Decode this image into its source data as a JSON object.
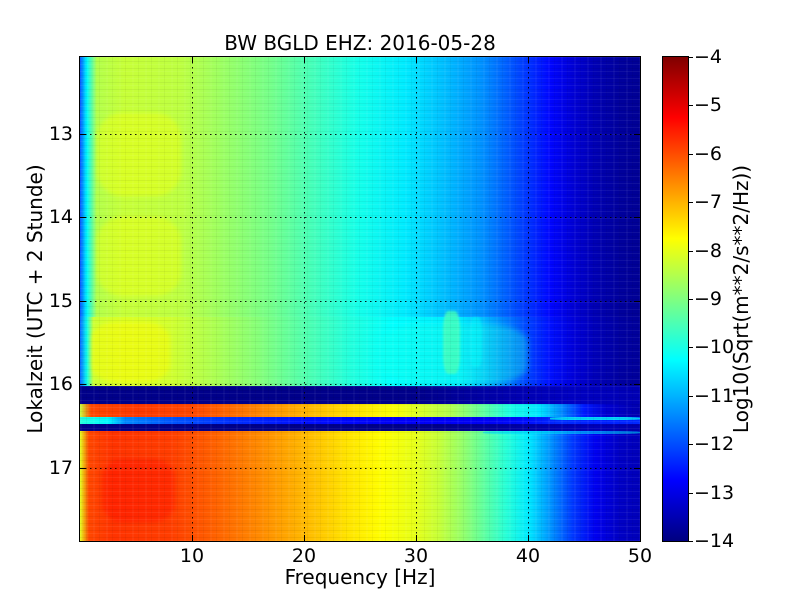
{
  "chart_data": {
    "type": "heatmap",
    "title": "BW BGLD EHZ: 2016-05-28",
    "xlabel": "Frequency [Hz]",
    "ylabel": "Lokalzeit (UTC + 2 Stunde)",
    "colorbar_label": "Log10(Sqrt(m**2/s**2/Hz))",
    "colormap": "jet",
    "grid": "dotted",
    "x_range": [
      0,
      50
    ],
    "x_ticks": [
      10,
      20,
      30,
      40,
      50
    ],
    "time_range": [
      12.08,
      17.88
    ],
    "time_ticks": [
      13,
      14,
      15,
      16,
      17
    ],
    "value_range": [
      -14,
      -4
    ],
    "colorbar_ticks": [
      -4,
      -5,
      -6,
      -7,
      -8,
      -9,
      -10,
      -11,
      -12,
      -13,
      -14
    ],
    "segments": [
      {
        "name": "quiet-period",
        "t_start": 12.08,
        "t_end": 15.2,
        "profile": [
          [
            0,
            -12.0
          ],
          [
            0.6,
            -10.3
          ],
          [
            1.5,
            -8.5
          ],
          [
            4,
            -8.3
          ],
          [
            9,
            -8.4
          ],
          [
            13,
            -8.75
          ],
          [
            17,
            -9.1
          ],
          [
            21,
            -9.6
          ],
          [
            25,
            -10.05
          ],
          [
            29,
            -10.45
          ],
          [
            33,
            -10.95
          ],
          [
            36,
            -11.35
          ],
          [
            38,
            -11.8
          ],
          [
            40,
            -12.25
          ],
          [
            42,
            -12.7
          ],
          [
            44,
            -13.15
          ],
          [
            46,
            -13.5
          ],
          [
            48,
            -13.7
          ],
          [
            50,
            -13.8
          ]
        ]
      },
      {
        "name": "pre-event-period",
        "t_start": 15.2,
        "t_end": 16.02,
        "profile": [
          [
            0,
            -11.8
          ],
          [
            0.6,
            -10.1
          ],
          [
            1.2,
            -8.25
          ],
          [
            4,
            -8.1
          ],
          [
            8,
            -8.2
          ],
          [
            12,
            -8.55
          ],
          [
            16,
            -8.95
          ],
          [
            20,
            -9.45
          ],
          [
            24,
            -9.9
          ],
          [
            28,
            -10.25
          ],
          [
            31,
            -10.35
          ],
          [
            34,
            -10.45
          ],
          [
            36,
            -10.9
          ],
          [
            38,
            -11.5
          ],
          [
            40,
            -12.1
          ],
          [
            42,
            -12.6
          ],
          [
            44,
            -13.1
          ],
          [
            46,
            -13.45
          ],
          [
            48,
            -13.65
          ],
          [
            50,
            -13.75
          ]
        ]
      },
      {
        "name": "data-gap-1",
        "t_start": 16.02,
        "t_end": 16.235,
        "profile": [
          [
            0,
            -13.9
          ],
          [
            30,
            -13.9
          ],
          [
            38,
            -13.55
          ],
          [
            44,
            -13.35
          ],
          [
            50,
            -13.5
          ]
        ]
      },
      {
        "name": "event-burst",
        "t_start": 16.235,
        "t_end": 16.395,
        "profile": [
          [
            0,
            -8.3
          ],
          [
            1,
            -5.95
          ],
          [
            5,
            -5.8
          ],
          [
            10,
            -5.95
          ],
          [
            15,
            -6.45
          ],
          [
            20,
            -7.0
          ],
          [
            25,
            -7.5
          ],
          [
            28,
            -7.8
          ],
          [
            33,
            -8.5
          ],
          [
            36,
            -9.3
          ],
          [
            38.5,
            -10.0
          ],
          [
            41,
            -10.5
          ],
          [
            43,
            -11.4
          ],
          [
            45,
            -12.5
          ],
          [
            47,
            -13.2
          ],
          [
            50,
            -13.55
          ]
        ]
      },
      {
        "name": "blue-stripe",
        "t_start": 16.395,
        "t_end": 16.48,
        "profile": [
          [
            0,
            -9.9
          ],
          [
            2.5,
            -10.3
          ],
          [
            4,
            -11.4
          ],
          [
            8,
            -11.9
          ],
          [
            13,
            -12.25
          ],
          [
            20,
            -12.6
          ],
          [
            28,
            -12.8
          ],
          [
            36,
            -12.85
          ],
          [
            40,
            -12.6
          ],
          [
            43,
            -12.3
          ],
          [
            46,
            -12.45
          ],
          [
            50,
            -12.35
          ]
        ]
      },
      {
        "name": "data-gap-2",
        "t_start": 16.48,
        "t_end": 16.565,
        "profile": [
          [
            0,
            -13.9
          ],
          [
            32,
            -13.9
          ],
          [
            40,
            -13.6
          ],
          [
            46,
            -13.45
          ],
          [
            50,
            -13.55
          ]
        ]
      },
      {
        "name": "noisy-period",
        "t_start": 16.565,
        "t_end": 17.88,
        "profile": [
          [
            0,
            -8.0
          ],
          [
            0.8,
            -5.95
          ],
          [
            3,
            -5.75
          ],
          [
            8,
            -5.85
          ],
          [
            12,
            -6.2
          ],
          [
            16,
            -6.6
          ],
          [
            20,
            -7.05
          ],
          [
            24,
            -7.5
          ],
          [
            27,
            -7.75
          ],
          [
            30,
            -8.0
          ],
          [
            32,
            -8.3
          ],
          [
            34,
            -8.75
          ],
          [
            36,
            -9.3
          ],
          [
            38,
            -9.85
          ],
          [
            40,
            -10.45
          ],
          [
            42,
            -11.3
          ],
          [
            44,
            -12.2
          ],
          [
            46,
            -12.9
          ],
          [
            48,
            -13.3
          ],
          [
            50,
            -13.45
          ]
        ]
      }
    ],
    "patches": [
      {
        "name": "yellow-speckle-13h",
        "t_start": 12.75,
        "t_end": 13.75,
        "f_start": 1.5,
        "f_end": 9,
        "value": -7.85,
        "opacity": 0.4,
        "blur": 2
      },
      {
        "name": "yellow-speckle-14h",
        "t_start": 14.0,
        "t_end": 14.95,
        "f_start": 1.5,
        "f_end": 9,
        "value": -7.85,
        "opacity": 0.38,
        "blur": 2
      },
      {
        "name": "yellow-speckle-15h",
        "t_start": 15.25,
        "t_end": 15.98,
        "f_start": 1.0,
        "f_end": 8,
        "value": -7.7,
        "opacity": 0.45,
        "blur": 2
      },
      {
        "name": "cyan-region-15h",
        "t_start": 15.28,
        "t_end": 16.0,
        "f_start": 27,
        "f_end": 40,
        "value": -10.0,
        "opacity": 0.35,
        "blur": 3
      },
      {
        "name": "streak-33hz",
        "t_start": 15.12,
        "t_end": 15.88,
        "f_start": 32.4,
        "f_end": 33.9,
        "value": -9.6,
        "opacity": 0.85,
        "blur": 1
      },
      {
        "name": "streak-35hz",
        "t_start": 15.2,
        "t_end": 15.8,
        "f_start": 34.8,
        "f_end": 35.9,
        "value": -10.2,
        "opacity": 0.45,
        "blur": 1
      },
      {
        "name": "red-speckle-17h",
        "t_start": 16.9,
        "t_end": 17.65,
        "f_start": 2,
        "f_end": 8.5,
        "value": -5.35,
        "opacity": 0.35,
        "blur": 2
      },
      {
        "name": "cyan-line-stripe-right",
        "t_start": 16.395,
        "t_end": 16.425,
        "f_start": 42,
        "f_end": 50,
        "value": -10.2,
        "opacity": 0.8,
        "blur": 0
      },
      {
        "name": "cyan-line-post-gap",
        "t_start": 16.565,
        "t_end": 16.6,
        "f_start": 36,
        "f_end": 50,
        "value": -10.6,
        "opacity": 0.6,
        "blur": 0
      }
    ]
  }
}
